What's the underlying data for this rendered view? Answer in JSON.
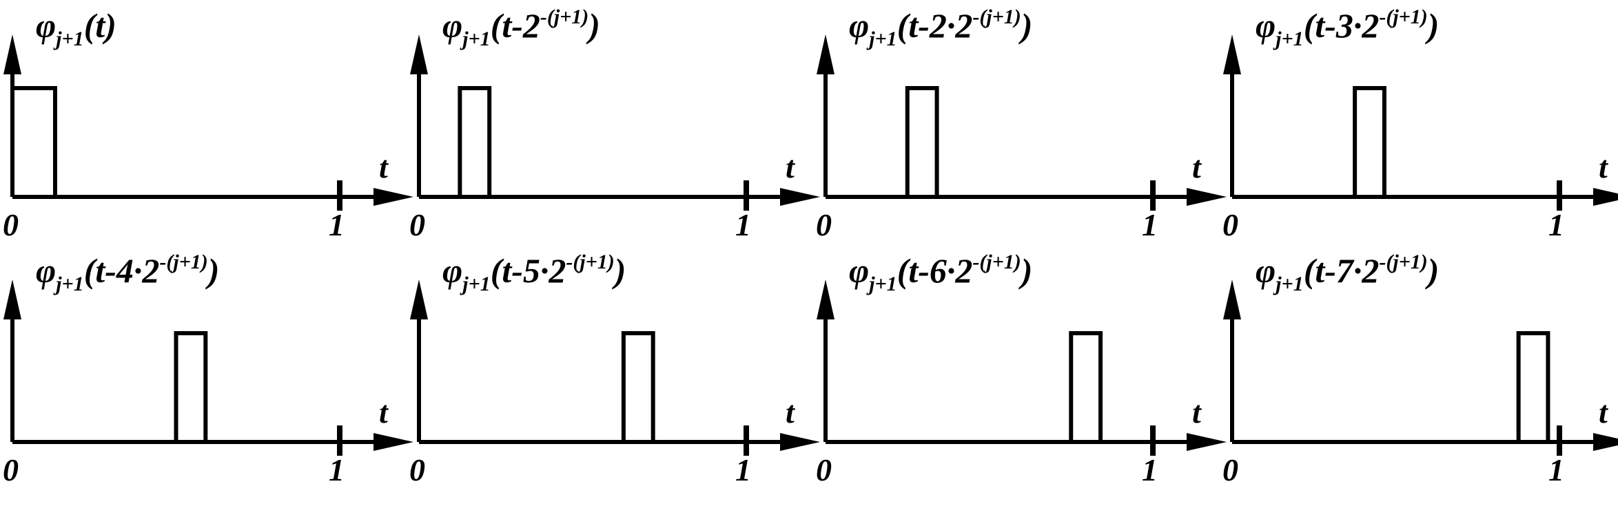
{
  "figure": {
    "stroke_color": "#000000",
    "background": "#ffffff",
    "x_axis_label": "t",
    "x_start_label": "0",
    "x_end_label": "1"
  },
  "chart_data": {
    "type": "diagram",
    "description_source": "Eight shifted box functions on [0,1], arranged 2 rows x 4 columns",
    "x_range": [
      0,
      1
    ],
    "pulse_width": 0.125,
    "panels": [
      {
        "title": {
          "main": "φ",
          "sub": "j+1",
          "body": "(t)",
          "sup": "",
          "close": ""
        },
        "shift": 0
      },
      {
        "title": {
          "main": "φ",
          "sub": "j+1",
          "body": "(t-2",
          "sup": "-(j+1)",
          "close": ")"
        },
        "shift": 1
      },
      {
        "title": {
          "main": "φ",
          "sub": "j+1",
          "body": "(t-2·2",
          "sup": "-(j+1)",
          "close": ")"
        },
        "shift": 2
      },
      {
        "title": {
          "main": "φ",
          "sub": "j+1",
          "body": "(t-3·2",
          "sup": "-(j+1)",
          "close": ")"
        },
        "shift": 3
      },
      {
        "title": {
          "main": "φ",
          "sub": "j+1",
          "body": "(t-4·2",
          "sup": "-(j+1)",
          "close": ")"
        },
        "shift": 4
      },
      {
        "title": {
          "main": "φ",
          "sub": "j+1",
          "body": "(t-5·2",
          "sup": "-(j+1)",
          "close": ")"
        },
        "shift": 5
      },
      {
        "title": {
          "main": "φ",
          "sub": "j+1",
          "body": "(t-6·2",
          "sup": "-(j+1)",
          "close": ")"
        },
        "shift": 6
      },
      {
        "title": {
          "main": "φ",
          "sub": "j+1",
          "body": "(t-7·2",
          "sup": "-(j+1)",
          "close": ")"
        },
        "shift": 7
      }
    ]
  }
}
